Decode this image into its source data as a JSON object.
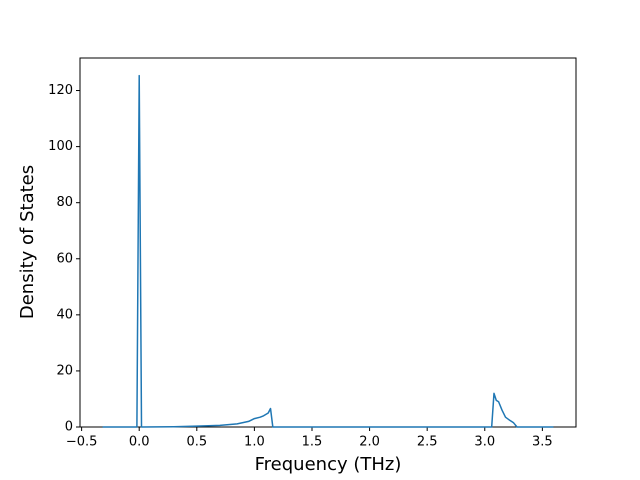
{
  "chart_data": {
    "type": "line",
    "x_label": "Frequency (THz)",
    "y_label": "Density of States",
    "x": [
      -0.318,
      -0.02,
      0,
      0.02,
      0.3,
      0.5,
      0.7,
      0.85,
      0.95,
      1.0,
      1.05,
      1.08,
      1.12,
      1.14,
      1.16,
      1.5,
      3.06,
      3.08,
      3.1,
      3.12,
      3.15,
      3.18,
      3.22,
      3.25,
      3.28,
      3.596
    ],
    "values": [
      0,
      0,
      125.3,
      0,
      0.1,
      0.3,
      0.6,
      1.1,
      2,
      3,
      3.5,
      4,
      5,
      6.6,
      0,
      0,
      0,
      12,
      9.5,
      9,
      6,
      3.5,
      2.3,
      1.5,
      0,
      0
    ],
    "color": "#1f77b4",
    "xlim": [
      -0.514,
      3.792
    ],
    "ylim": [
      0,
      131.6
    ],
    "xticks": [
      {
        "value": -0.5,
        "label": "−0.5"
      },
      {
        "value": 0,
        "label": "0.0"
      },
      0.5,
      {
        "value": 1,
        "label": "1.0"
      },
      1.5,
      {
        "value": 2,
        "label": "2.0"
      },
      2.5,
      {
        "value": 3,
        "label": "3.0"
      },
      3.5
    ],
    "yticks": [
      0,
      20,
      40,
      60,
      80,
      100,
      120
    ]
  }
}
